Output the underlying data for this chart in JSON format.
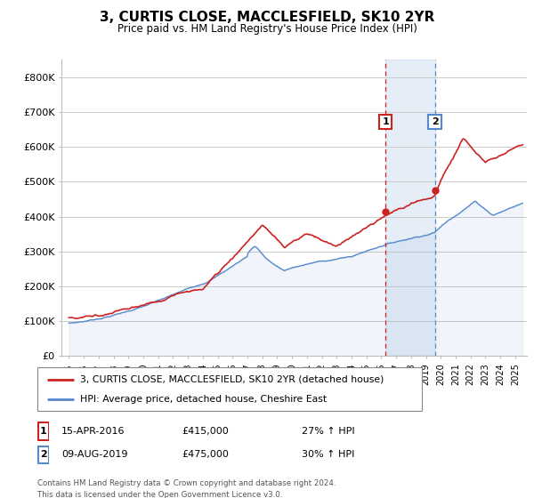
{
  "title": "3, CURTIS CLOSE, MACCLESFIELD, SK10 2YR",
  "subtitle": "Price paid vs. HM Land Registry's House Price Index (HPI)",
  "ylim": [
    0,
    850000
  ],
  "yticks": [
    0,
    100000,
    200000,
    300000,
    400000,
    500000,
    600000,
    700000,
    800000
  ],
  "ytick_labels": [
    "£0",
    "£100K",
    "£200K",
    "£300K",
    "£400K",
    "£500K",
    "£600K",
    "£700K",
    "£800K"
  ],
  "hpi_color": "#5588cc",
  "hpi_fill_color": "#aabbdd",
  "price_color": "#cc2222",
  "marker1_date": 2016.29,
  "marker1_price": 415000,
  "marker2_date": 2019.6,
  "marker2_price": 475000,
  "legend_line1": "3, CURTIS CLOSE, MACCLESFIELD, SK10 2YR (detached house)",
  "legend_line2": "HPI: Average price, detached house, Cheshire East",
  "table_row1": [
    "1",
    "15-APR-2016",
    "£415,000",
    "27% ↑ HPI"
  ],
  "table_row2": [
    "2",
    "09-AUG-2019",
    "£475,000",
    "30% ↑ HPI"
  ],
  "footer": "Contains HM Land Registry data © Crown copyright and database right 2024.\nThis data is licensed under the Open Government Licence v3.0."
}
